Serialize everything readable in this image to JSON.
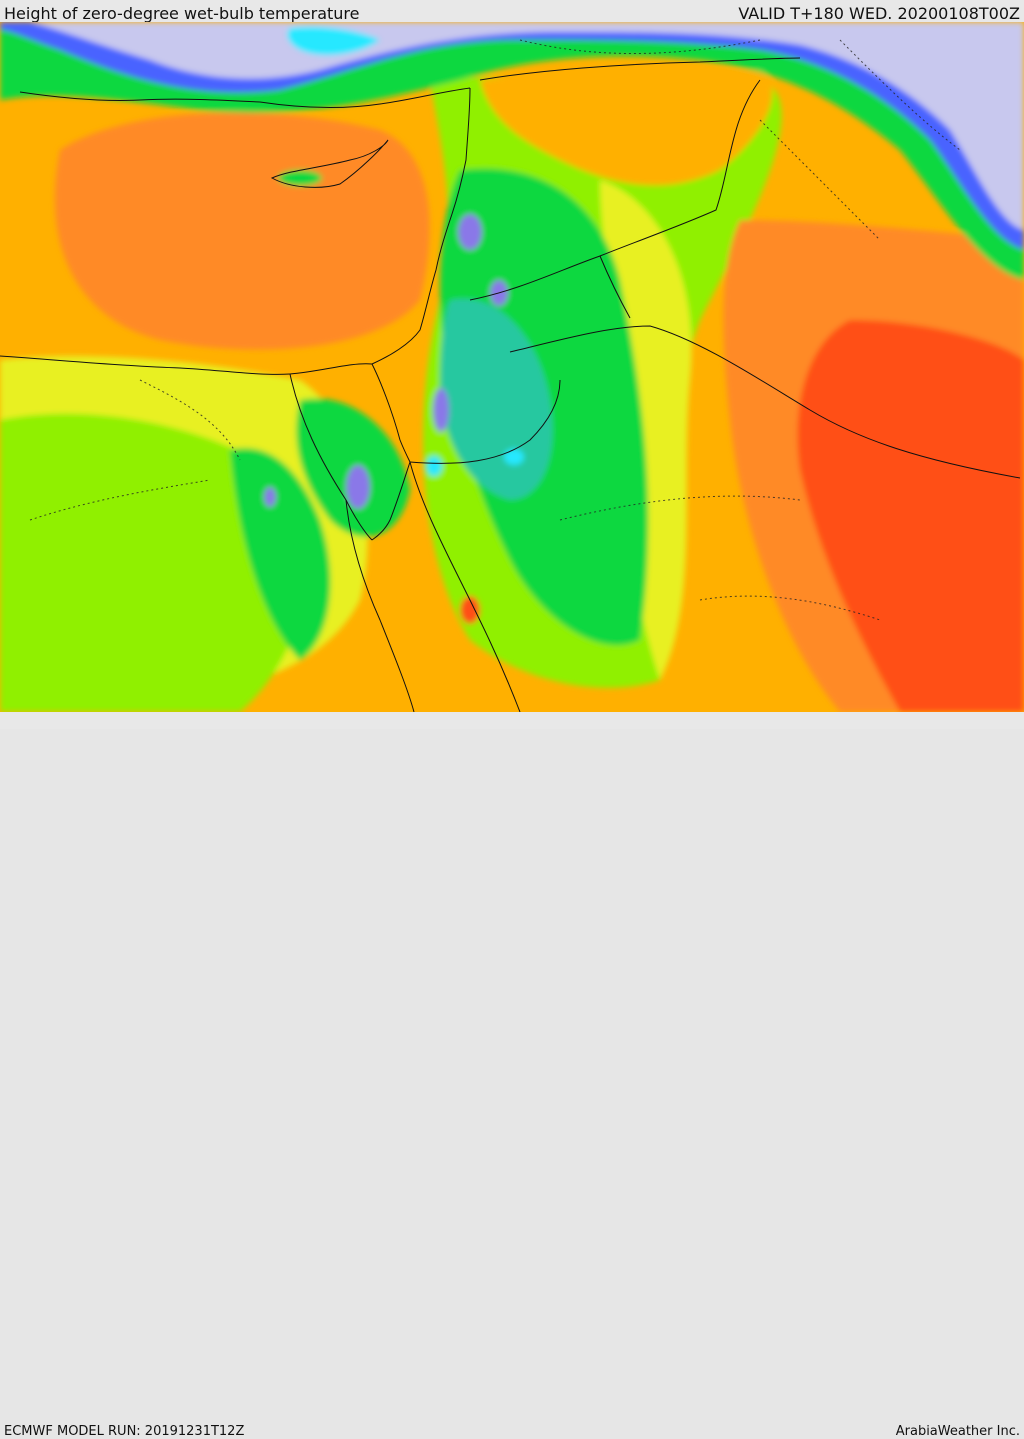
{
  "header": {
    "title": "Height of zero-degree wet-bulb temperature",
    "valid": "VALID T+180 WED. 20200108T00Z"
  },
  "footer": {
    "model_run": "ECMWF MODEL RUN: 20191231T12Z",
    "brand": "ArabiaWeather Inc."
  },
  "palette": {
    "lavender": "#c8c8ee",
    "blue": "#4a64ff",
    "violet": "#8a78e8",
    "cyan": "#28e8ff",
    "teal": "#28c8a0",
    "green": "#10d840",
    "lime": "#90f000",
    "yellow": "#e8f020",
    "amber": "#ffb000",
    "orange": "#ff8a28",
    "red_orange": "#ff5014"
  }
}
